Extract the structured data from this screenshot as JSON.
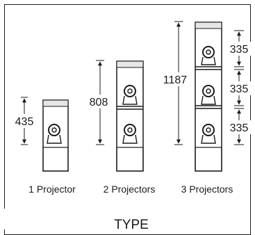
{
  "diagram": {
    "title": "TYPE",
    "types": [
      {
        "caption": "1 Projector",
        "projectors": 1,
        "height_label": "435"
      },
      {
        "caption": "2 Projectors",
        "projectors": 2,
        "height_label": "808"
      },
      {
        "caption": "3 Projectors",
        "projectors": 3,
        "height_label": "1187",
        "module_labels": [
          "335",
          "335",
          "335"
        ]
      }
    ]
  }
}
